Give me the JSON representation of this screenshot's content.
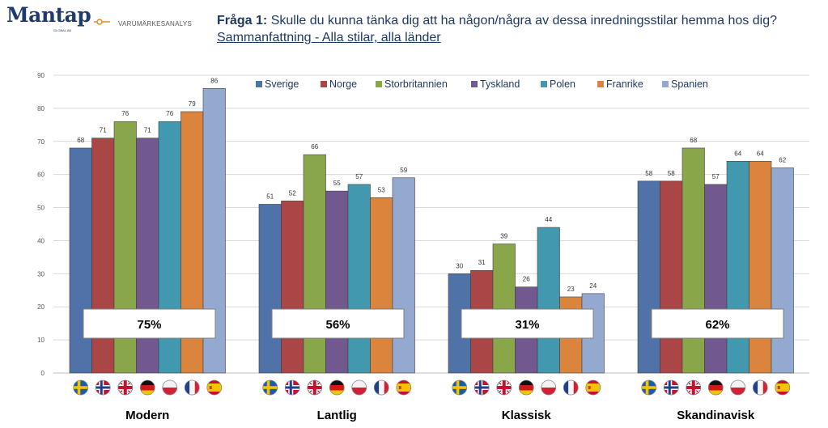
{
  "header": {
    "logo": "Mantap",
    "logo_sub": "GLOBAL AB",
    "brand_text": "VARUMÄRKESANALYS",
    "question_label": "Fråga 1:",
    "question_text": " Skulle du kunna tänka dig att ha någon/några av dessa inredningsstilar hemma hos dig? ",
    "question_sub": "Sammanfattning - Alla stilar, alla länder"
  },
  "chart_data": {
    "type": "bar",
    "title": "",
    "xlabel": "",
    "ylabel": "",
    "ylim": [
      0,
      90
    ],
    "yticks": [
      0,
      10,
      20,
      30,
      40,
      50,
      60,
      70,
      80,
      90
    ],
    "categories": [
      "Modern",
      "Lantlig",
      "Klassisk",
      "Skandinavisk"
    ],
    "series": [
      {
        "name": "Sverige",
        "color": "#4f73a8",
        "flag": "sweden-flag-icon",
        "values": [
          68,
          51,
          30,
          58
        ]
      },
      {
        "name": "Norge",
        "color": "#aa4645",
        "flag": "norway-flag-icon",
        "values": [
          71,
          52,
          31,
          58
        ]
      },
      {
        "name": "Storbritannien",
        "color": "#8aa64b",
        "flag": "uk-flag-icon",
        "values": [
          76,
          66,
          39,
          68
        ]
      },
      {
        "name": "Tyskland",
        "color": "#71588f",
        "flag": "germany-flag-icon",
        "values": [
          71,
          55,
          26,
          57
        ]
      },
      {
        "name": "Polen",
        "color": "#4298ae",
        "flag": "poland-flag-icon",
        "values": [
          76,
          57,
          44,
          64
        ]
      },
      {
        "name": "Franrike",
        "color": "#db843d",
        "flag": "france-flag-icon",
        "values": [
          79,
          53,
          23,
          64
        ]
      },
      {
        "name": "Spanien",
        "color": "#94a9cf",
        "flag": "spain-flag-icon",
        "values": [
          86,
          59,
          24,
          62
        ]
      }
    ],
    "summary": [
      "75%",
      "56%",
      "31%",
      "62%"
    ],
    "legend_position": "top"
  }
}
